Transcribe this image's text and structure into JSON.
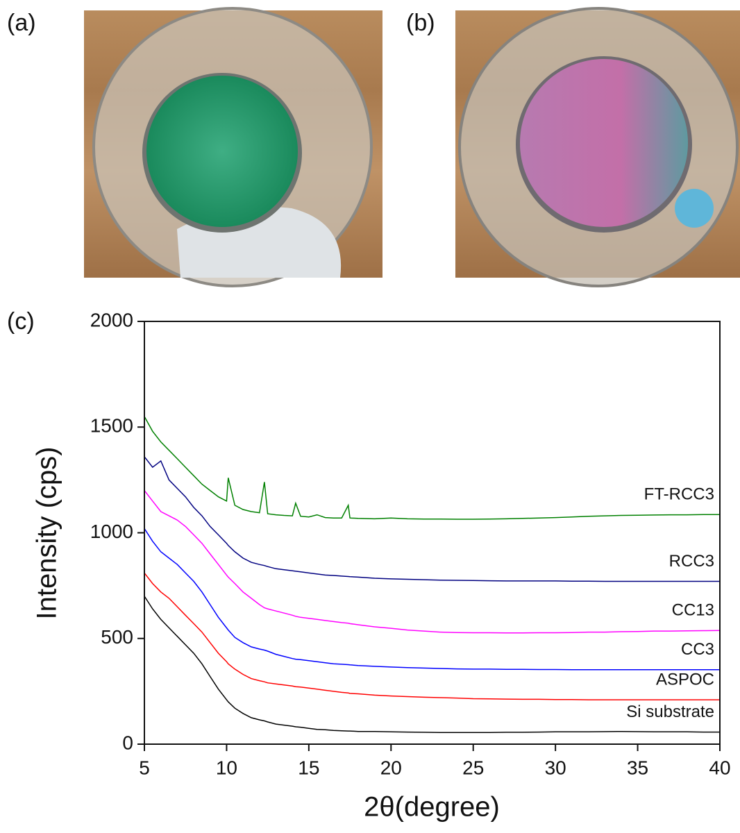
{
  "panel_labels": [
    "(a)",
    "(b)",
    "(c)"
  ],
  "chart_data": {
    "type": "line",
    "x_label": "2θ(degree)",
    "y_label": "Intensity (cps)",
    "xlim": [
      5,
      40
    ],
    "xticks": [
      5,
      10,
      15,
      20,
      25,
      30,
      35,
      40
    ],
    "ylim": [
      0,
      2000
    ],
    "yticks": [
      0,
      500,
      1000,
      1500,
      2000
    ],
    "x": [
      5,
      5.5,
      6,
      6.5,
      7,
      7.5,
      8,
      8.5,
      9,
      9.5,
      10,
      10.1,
      10.5,
      11,
      11.5,
      12,
      12.3,
      12.5,
      13,
      13.5,
      14,
      14.2,
      14.5,
      15,
      15.5,
      16,
      16.5,
      17,
      17.4,
      17.5,
      18,
      19,
      20,
      21,
      22,
      23,
      24,
      25,
      26,
      27,
      28,
      29,
      30,
      31,
      32,
      33,
      34,
      35,
      36,
      37,
      38,
      39,
      40
    ],
    "series": [
      {
        "name": "Si substrate",
        "color": "#000000",
        "values": [
          700,
          640,
          590,
          550,
          510,
          470,
          430,
          380,
          320,
          260,
          210,
          200,
          170,
          145,
          125,
          115,
          110,
          105,
          95,
          90,
          85,
          82,
          80,
          75,
          70,
          68,
          65,
          63,
          62,
          62,
          60,
          60,
          58,
          57,
          56,
          55,
          55,
          55,
          55,
          56,
          56,
          57,
          58,
          58,
          58,
          59,
          60,
          59,
          58,
          58,
          58,
          57,
          57
        ]
      },
      {
        "name": "ASPOC",
        "color": "#ff0000",
        "values": [
          810,
          760,
          720,
          690,
          650,
          610,
          570,
          530,
          480,
          430,
          390,
          380,
          355,
          330,
          310,
          300,
          295,
          290,
          285,
          280,
          275,
          272,
          270,
          265,
          260,
          255,
          250,
          245,
          242,
          240,
          238,
          232,
          228,
          225,
          222,
          220,
          218,
          215,
          214,
          213,
          212,
          212,
          211,
          211,
          210,
          210,
          210,
          210,
          210,
          210,
          210,
          210,
          210
        ]
      },
      {
        "name": "CC3",
        "color": "#0000ff",
        "values": [
          1020,
          960,
          910,
          880,
          850,
          810,
          770,
          720,
          660,
          600,
          550,
          540,
          505,
          480,
          460,
          450,
          445,
          440,
          425,
          415,
          405,
          402,
          400,
          395,
          390,
          385,
          380,
          378,
          376,
          375,
          372,
          368,
          365,
          362,
          360,
          358,
          356,
          355,
          355,
          354,
          354,
          353,
          353,
          352,
          352,
          352,
          352,
          352,
          352,
          352,
          352,
          352,
          352
        ]
      },
      {
        "name": "CC13",
        "color": "#ff00ff",
        "values": [
          1200,
          1150,
          1100,
          1080,
          1060,
          1030,
          990,
          950,
          900,
          850,
          800,
          790,
          760,
          720,
          690,
          660,
          645,
          640,
          630,
          620,
          610,
          605,
          600,
          595,
          590,
          585,
          580,
          575,
          572,
          570,
          565,
          555,
          548,
          540,
          535,
          530,
          528,
          527,
          527,
          526,
          526,
          527,
          527,
          528,
          530,
          530,
          532,
          533,
          535,
          535,
          536,
          537,
          538
        ]
      },
      {
        "name": "RCC3",
        "color": "#000080",
        "values": [
          1360,
          1310,
          1340,
          1250,
          1210,
          1170,
          1120,
          1080,
          1030,
          990,
          950,
          940,
          910,
          880,
          860,
          850,
          845,
          840,
          830,
          825,
          820,
          818,
          815,
          810,
          805,
          800,
          798,
          795,
          793,
          792,
          790,
          785,
          782,
          780,
          778,
          776,
          775,
          774,
          773,
          772,
          772,
          772,
          772,
          771,
          771,
          770,
          770,
          770,
          770,
          770,
          770,
          770,
          770
        ]
      },
      {
        "name": "FT-RCC3",
        "color": "#008000",
        "values": [
          1550,
          1480,
          1430,
          1390,
          1350,
          1310,
          1270,
          1230,
          1200,
          1170,
          1150,
          1260,
          1130,
          1110,
          1100,
          1095,
          1240,
          1090,
          1085,
          1082,
          1080,
          1140,
          1078,
          1075,
          1085,
          1072,
          1070,
          1070,
          1130,
          1070,
          1068,
          1066,
          1070,
          1066,
          1065,
          1065,
          1064,
          1064,
          1065,
          1066,
          1068,
          1070,
          1072,
          1075,
          1078,
          1080,
          1082,
          1083,
          1084,
          1085,
          1085,
          1086,
          1086
        ]
      }
    ]
  }
}
